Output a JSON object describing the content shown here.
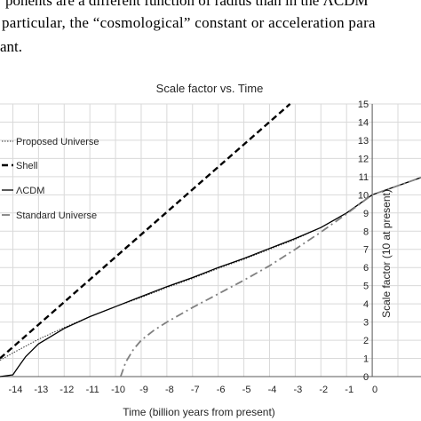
{
  "paper": {
    "line1": "ponents are a different function of radius than in the ΛCDM",
    "line2": "particular, the “cosmological” constant or acceleration para",
    "line3": "ant."
  },
  "chart_data": {
    "type": "line",
    "title": "Scale factor vs. Time",
    "xlabel": "Time  (billion years from present)",
    "ylabel": "Scale factor (10 at present)",
    "xlim": [
      -14.5,
      1.9
    ],
    "ylim": [
      0,
      15
    ],
    "x_ticks": [
      -14,
      -13,
      -12,
      -11,
      -10,
      -9,
      -8,
      -7,
      -6,
      -5,
      -4,
      -3,
      -2,
      -1,
      0
    ],
    "y_ticks": [
      0,
      1,
      2,
      3,
      4,
      5,
      6,
      7,
      8,
      9,
      10,
      11,
      12,
      13,
      14,
      15
    ],
    "grid": true,
    "legend_position": "left",
    "series": [
      {
        "name": "Proposed Universe",
        "style": "dotted",
        "color": "#333333",
        "x": [
          -14.5,
          -14,
          -13,
          -12,
          -11,
          -10,
          -9,
          -8,
          -7,
          -6,
          -5,
          -4,
          -3,
          -2,
          -1,
          0,
          1.9
        ],
        "y": [
          0.9,
          1.3,
          2.05,
          2.7,
          3.3,
          3.85,
          4.35,
          4.9,
          5.4,
          5.95,
          6.45,
          7.0,
          7.55,
          8.2,
          9.0,
          10.0,
          10.95
        ]
      },
      {
        "name": "Shell",
        "style": "dashed",
        "color": "#000000",
        "x": [
          -14.5,
          -3.2
        ],
        "y": [
          1.0,
          15.0
        ]
      },
      {
        "name": "ΛCDM",
        "style": "solid",
        "color": "#000000",
        "x": [
          -14.5,
          -14,
          -13.8,
          -13.5,
          -13,
          -12,
          -11,
          -10,
          -9,
          -8,
          -7,
          -6,
          -5,
          -4,
          -3,
          -2,
          -1,
          0,
          1.9
        ],
        "y": [
          0.0,
          0.1,
          0.5,
          1.1,
          1.8,
          2.65,
          3.3,
          3.85,
          4.4,
          4.95,
          5.45,
          6.0,
          6.5,
          7.05,
          7.6,
          8.2,
          9.0,
          10.0,
          10.95
        ]
      },
      {
        "name": "Standard Universe",
        "style": "dashdot",
        "color": "#808080",
        "x": [
          -9.8,
          -9.6,
          -9.3,
          -9,
          -8.5,
          -8,
          -7,
          -6,
          -5,
          -4,
          -3,
          -2,
          -1,
          0,
          1.9
        ],
        "y": [
          0.0,
          0.8,
          1.5,
          2.0,
          2.55,
          3.0,
          3.8,
          4.55,
          5.3,
          6.1,
          7.0,
          7.95,
          8.95,
          10.0,
          10.95
        ]
      }
    ]
  }
}
